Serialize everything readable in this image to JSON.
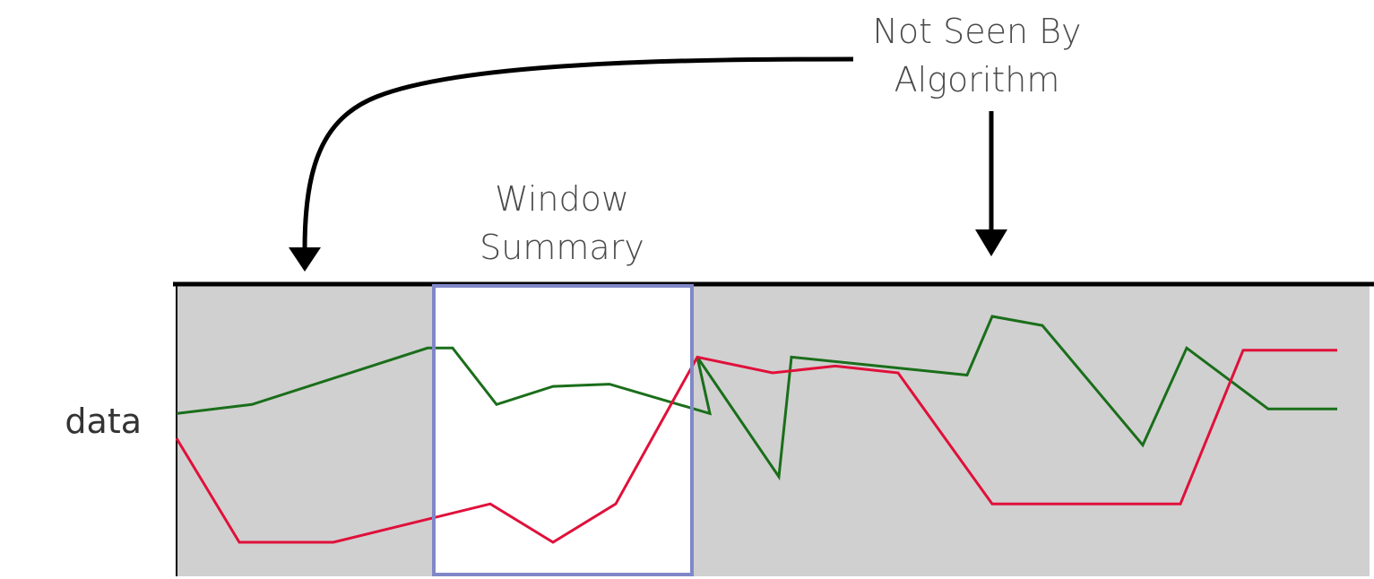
{
  "annotations": {
    "not_seen_line1": "Not Seen By",
    "not_seen_line2": "Algorithm",
    "window_line1": "Window",
    "window_line2": "Summary",
    "y_label": "data"
  },
  "colors": {
    "panel_background": "#d0d0d0",
    "window_background": "#ffffff",
    "window_border": "#8088c8",
    "series_green": "#1a6e1a",
    "series_red": "#e0103a",
    "arrow": "#000000"
  },
  "chart_data": {
    "type": "line",
    "series": [
      {
        "color": "#1a6e1a",
        "x": [
          0,
          1.2,
          4.0,
          4.4,
          5.1,
          6.0,
          6.9,
          8.5,
          8.3,
          9.6,
          9.8,
          12.6,
          13.0,
          13.8,
          15.4,
          16.1,
          17.4,
          18.5
        ],
        "y": [
          0.57,
          0.61,
          0.86,
          0.86,
          0.61,
          0.69,
          0.7,
          0.57,
          0.82,
          0.29,
          0.82,
          0.74,
          1.0,
          0.96,
          0.43,
          0.86,
          0.59,
          0.59
        ]
      },
      {
        "color": "#e0103a",
        "x": [
          0,
          1.0,
          2.5,
          5.0,
          6.0,
          7.0,
          8.3,
          9.5,
          10.5,
          11.5,
          13.0,
          16.0,
          17.0,
          18.5
        ],
        "y": [
          0.46,
          0.0,
          0.0,
          0.17,
          0.0,
          0.17,
          0.82,
          0.75,
          0.78,
          0.75,
          0.17,
          0.17,
          0.85,
          0.85
        ]
      }
    ]
  }
}
